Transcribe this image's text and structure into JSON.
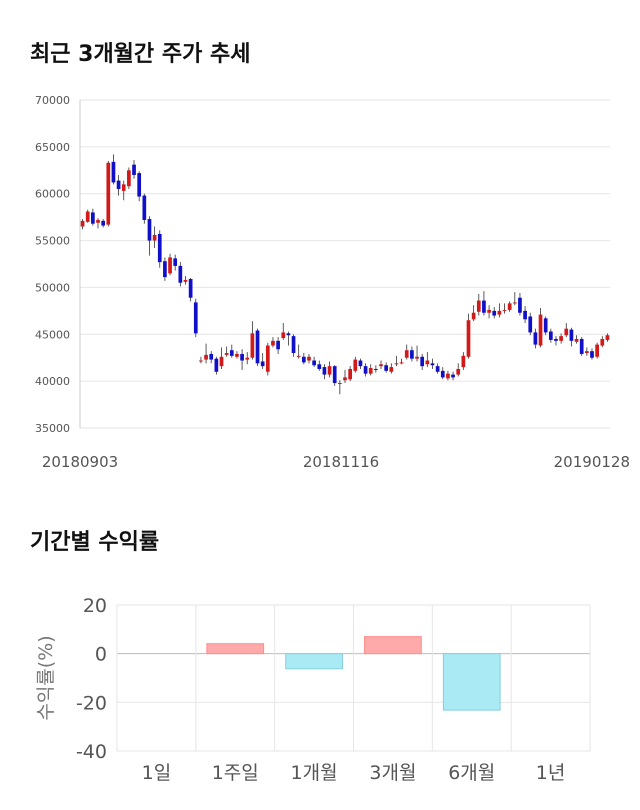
{
  "section1": {
    "title": "최근 3개월간 주가 추세"
  },
  "section2": {
    "title": "기간별 수익률"
  },
  "chart_data": [
    {
      "type": "candlestick",
      "title": "최근 3개월간 주가 추세",
      "ylim": [
        35000,
        70000
      ],
      "y_ticks": [
        "70000",
        "65000",
        "60000",
        "55000",
        "50000",
        "45000",
        "40000",
        "35000"
      ],
      "x_ticks": [
        "20180903",
        "20181116",
        "20190128"
      ],
      "grid": true,
      "colors": {
        "up": "#d21a1a",
        "down": "#1010c8",
        "wick": "#333333",
        "grid": "#e6e6e6"
      },
      "candles": [
        [
          56500,
          57100,
          56200,
          57300
        ],
        [
          57000,
          58100,
          56900,
          58300
        ],
        [
          58000,
          56800,
          56600,
          58400
        ],
        [
          56900,
          57200,
          56300,
          57400
        ],
        [
          57100,
          56600,
          56400,
          57300
        ],
        [
          56700,
          63300,
          56500,
          63500
        ],
        [
          63400,
          61200,
          61000,
          64200
        ],
        [
          61400,
          60500,
          59800,
          62000
        ],
        [
          60300,
          61000,
          59300,
          61400
        ],
        [
          60800,
          62500,
          60500,
          62800
        ],
        [
          63100,
          62000,
          61600,
          63600
        ],
        [
          62200,
          59700,
          59200,
          62400
        ],
        [
          59800,
          57200,
          56800,
          60000
        ],
        [
          57300,
          55000,
          53400,
          57600
        ],
        [
          55000,
          55600,
          54200,
          56500
        ],
        [
          55700,
          52700,
          52100,
          56100
        ],
        [
          52800,
          51100,
          50700,
          53200
        ],
        [
          51500,
          53200,
          51300,
          53600
        ],
        [
          53100,
          52300,
          51800,
          53500
        ],
        [
          52300,
          50500,
          50100,
          52700
        ],
        [
          50600,
          50800,
          50300,
          51200
        ],
        [
          50900,
          48900,
          48500,
          51000
        ],
        [
          48400,
          45100,
          44700,
          48800
        ],
        [
          42100,
          42200,
          41900,
          42600
        ],
        [
          42300,
          42800,
          41900,
          44000
        ],
        [
          42900,
          42300,
          41900,
          43200
        ],
        [
          42400,
          41000,
          40700,
          42600
        ],
        [
          41600,
          42600,
          41300,
          43600
        ],
        [
          42800,
          43000,
          42600,
          43700
        ],
        [
          43300,
          42700,
          42500,
          43900
        ],
        [
          42600,
          42900,
          42400,
          43200
        ],
        [
          42900,
          42200,
          41200,
          43400
        ],
        [
          42300,
          42500,
          41800,
          43100
        ],
        [
          42500,
          45100,
          42300,
          46400
        ],
        [
          45400,
          41900,
          41600,
          45600
        ],
        [
          42100,
          41600,
          41300,
          43000
        ],
        [
          41000,
          43800,
          40600,
          44100
        ],
        [
          43800,
          44300,
          43600,
          44700
        ],
        [
          44300,
          43400,
          42900,
          44700
        ],
        [
          44600,
          45200,
          44400,
          46200
        ],
        [
          45100,
          44900,
          43800,
          45300
        ],
        [
          44800,
          43000,
          42600,
          45000
        ],
        [
          42700,
          42700,
          42400,
          43900
        ],
        [
          42600,
          42000,
          41800,
          43000
        ],
        [
          42200,
          42600,
          41900,
          42900
        ],
        [
          42200,
          41700,
          41500,
          42600
        ],
        [
          41800,
          41300,
          41100,
          42200
        ],
        [
          41500,
          40700,
          40200,
          41800
        ],
        [
          40700,
          41600,
          40400,
          42100
        ],
        [
          41600,
          39800,
          39500,
          41700
        ],
        [
          39800,
          39800,
          38600,
          40100
        ],
        [
          40100,
          40400,
          39800,
          41200
        ],
        [
          40200,
          41300,
          40000,
          41600
        ],
        [
          41100,
          42300,
          40900,
          42600
        ],
        [
          42200,
          41600,
          41300,
          42400
        ],
        [
          41600,
          40800,
          40500,
          41900
        ],
        [
          40800,
          41400,
          40600,
          41800
        ],
        [
          41300,
          41200,
          40900,
          41700
        ],
        [
          41600,
          41800,
          41300,
          42200
        ],
        [
          41700,
          41100,
          40900,
          42000
        ],
        [
          41000,
          41500,
          40800,
          41900
        ],
        [
          41900,
          41900,
          41600,
          42700
        ],
        [
          42000,
          42000,
          41800,
          42400
        ],
        [
          42500,
          43300,
          42300,
          43900
        ],
        [
          43300,
          42400,
          42100,
          43700
        ],
        [
          42400,
          42600,
          42100,
          43800
        ],
        [
          42600,
          41600,
          41200,
          42900
        ],
        [
          41800,
          42200,
          41500,
          43100
        ],
        [
          41900,
          41700,
          41300,
          42400
        ],
        [
          41600,
          41000,
          40800,
          41900
        ],
        [
          41100,
          40400,
          40200,
          41500
        ],
        [
          40300,
          40800,
          40100,
          41100
        ],
        [
          40700,
          40400,
          40100,
          41000
        ],
        [
          40700,
          41300,
          40500,
          41900
        ],
        [
          41500,
          42700,
          41200,
          43100
        ],
        [
          42600,
          46500,
          42400,
          47200
        ],
        [
          46600,
          47300,
          46400,
          48100
        ],
        [
          47400,
          48600,
          47000,
          49300
        ],
        [
          48600,
          47300,
          47000,
          49600
        ],
        [
          47300,
          47600,
          46700,
          48100
        ],
        [
          47500,
          47000,
          46700,
          47900
        ],
        [
          47100,
          47500,
          46800,
          48300
        ],
        [
          47500,
          47600,
          47200,
          48300
        ],
        [
          47600,
          48300,
          47400,
          48500
        ],
        [
          48300,
          48400,
          48100,
          49500
        ],
        [
          48900,
          47300,
          47000,
          49400
        ],
        [
          47500,
          46600,
          46200,
          48000
        ],
        [
          46900,
          45200,
          44900,
          47300
        ],
        [
          45200,
          43900,
          43500,
          45600
        ],
        [
          43800,
          47100,
          43600,
          47800
        ],
        [
          46700,
          45200,
          44900,
          46900
        ],
        [
          45300,
          44400,
          44100,
          45600
        ],
        [
          44500,
          44300,
          43800,
          44800
        ],
        [
          44300,
          44800,
          44000,
          45100
        ],
        [
          44900,
          45600,
          44700,
          46200
        ],
        [
          45500,
          44300,
          43700,
          45700
        ],
        [
          44200,
          44500,
          44000,
          44900
        ],
        [
          44500,
          42900,
          42700,
          44700
        ],
        [
          43000,
          43200,
          42700,
          43600
        ],
        [
          43200,
          42500,
          42300,
          43500
        ],
        [
          42600,
          43900,
          42400,
          44100
        ],
        [
          43800,
          44500,
          43600,
          44800
        ],
        [
          44400,
          44900,
          44200,
          45100
        ]
      ]
    },
    {
      "type": "bar",
      "title": "기간별 수익률",
      "ylabel": "수익률(%)",
      "ylim": [
        -40,
        20
      ],
      "y_ticks": [
        "20",
        "0",
        "-20",
        "-40"
      ],
      "categories": [
        "1일",
        "1주일",
        "1개월",
        "3개월",
        "6개월",
        "1년"
      ],
      "values": [
        0,
        4.1,
        -6.2,
        7.0,
        -23.2,
        0
      ],
      "colors": {
        "positive": "#ffaaaa",
        "negative": "#aaeaf5"
      }
    }
  ]
}
